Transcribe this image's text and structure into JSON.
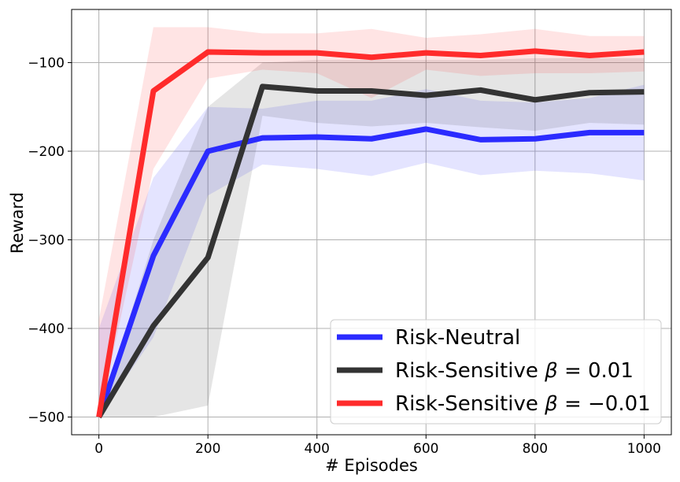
{
  "chart_data": {
    "type": "line",
    "xlabel": "# Episodes",
    "ylabel": "Reward",
    "xlim": [
      -50,
      1050
    ],
    "ylim": [
      -520,
      -40
    ],
    "x_ticks": [
      0,
      200,
      400,
      600,
      800,
      1000
    ],
    "y_ticks": [
      -500,
      -400,
      -300,
      -200,
      -100
    ],
    "x_tick_labels": [
      "0",
      "200",
      "400",
      "600",
      "800",
      "1000"
    ],
    "y_tick_labels": [
      "−500",
      "−400",
      "−300",
      "−200",
      "−100"
    ],
    "grid": true,
    "legend_position": "lower-right",
    "x": [
      0,
      100,
      200,
      300,
      400,
      500,
      600,
      700,
      800,
      900,
      1000
    ],
    "series": [
      {
        "name": "Risk-Neutral",
        "legend_prefix": "Risk-Neutral",
        "legend_symbol": "",
        "legend_value": "",
        "color": "#2b2bff",
        "values": [
          -500,
          -318,
          -200,
          -185,
          -184,
          -186,
          -175,
          -187,
          -186,
          -179,
          -179
        ],
        "upper": [
          -400,
          -230,
          -150,
          -152,
          -143,
          -143,
          -130,
          -143,
          -145,
          -140,
          -125
        ],
        "lower": [
          -500,
          -410,
          -250,
          -215,
          -220,
          -228,
          -213,
          -227,
          -222,
          -225,
          -233
        ]
      },
      {
        "name": "Risk-Sensitive β = 0.01",
        "legend_prefix": "Risk-Sensitive ",
        "legend_symbol": "β",
        "legend_value": " = 0.01",
        "color": "#333333",
        "values": [
          -500,
          -397,
          -320,
          -127,
          -132,
          -132,
          -137,
          -131,
          -142,
          -134,
          -133
        ],
        "upper": [
          -500,
          -300,
          -150,
          -100,
          -97,
          -97,
          -97,
          -97,
          -95,
          -95,
          -95
        ],
        "lower": [
          -500,
          -500,
          -487,
          -160,
          -168,
          -172,
          -168,
          -173,
          -177,
          -168,
          -170
        ]
      },
      {
        "name": "Risk-Sensitive β = −0.01",
        "legend_prefix": "Risk-Sensitive ",
        "legend_symbol": "β",
        "legend_value": " = −0.01",
        "color": "#ff2b2b",
        "values": [
          -500,
          -132,
          -88,
          -89,
          -89,
          -94,
          -89,
          -92,
          -87,
          -92,
          -88
        ],
        "upper": [
          -390,
          -60,
          -60,
          -67,
          -67,
          -62,
          -72,
          -68,
          -62,
          -70,
          -70
        ],
        "lower": [
          -500,
          -220,
          -118,
          -108,
          -112,
          -140,
          -108,
          -115,
          -112,
          -112,
          -110
        ]
      }
    ]
  }
}
